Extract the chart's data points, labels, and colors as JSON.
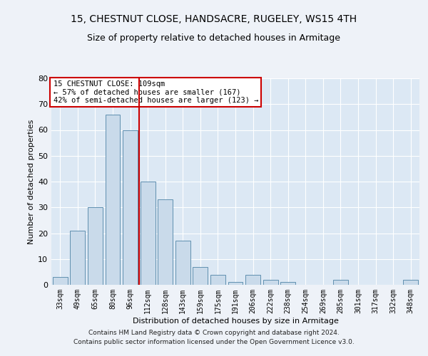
{
  "title1": "15, CHESTNUT CLOSE, HANDSACRE, RUGELEY, WS15 4TH",
  "title2": "Size of property relative to detached houses in Armitage",
  "xlabel": "Distribution of detached houses by size in Armitage",
  "ylabel": "Number of detached properties",
  "categories": [
    "33sqm",
    "49sqm",
    "65sqm",
    "80sqm",
    "96sqm",
    "112sqm",
    "128sqm",
    "143sqm",
    "159sqm",
    "175sqm",
    "191sqm",
    "206sqm",
    "222sqm",
    "238sqm",
    "254sqm",
    "269sqm",
    "285sqm",
    "301sqm",
    "317sqm",
    "332sqm",
    "348sqm"
  ],
  "values": [
    3,
    21,
    30,
    66,
    60,
    40,
    33,
    17,
    7,
    4,
    1,
    4,
    2,
    1,
    0,
    0,
    2,
    0,
    0,
    0,
    2
  ],
  "bar_color": "#c9daea",
  "bar_edge_color": "#6090b0",
  "vline_color": "#cc0000",
  "vline_x": 4.5,
  "ylim": [
    0,
    80
  ],
  "yticks": [
    0,
    10,
    20,
    30,
    40,
    50,
    60,
    70,
    80
  ],
  "annotation_text": "15 CHESTNUT CLOSE: 109sqm\n← 57% of detached houses are smaller (167)\n42% of semi-detached houses are larger (123) →",
  "annotation_box_color": "#ffffff",
  "annotation_box_edge": "#cc0000",
  "fig_bg_color": "#eef2f8",
  "plot_bg_color": "#dce8f4",
  "grid_color": "#ffffff",
  "footer1": "Contains HM Land Registry data © Crown copyright and database right 2024.",
  "footer2": "Contains public sector information licensed under the Open Government Licence v3.0.",
  "title1_fontsize": 10,
  "title2_fontsize": 9,
  "ylabel_fontsize": 8,
  "xlabel_fontsize": 8,
  "tick_fontsize": 7,
  "footer_fontsize": 6.5,
  "annotation_fontsize": 7.5
}
